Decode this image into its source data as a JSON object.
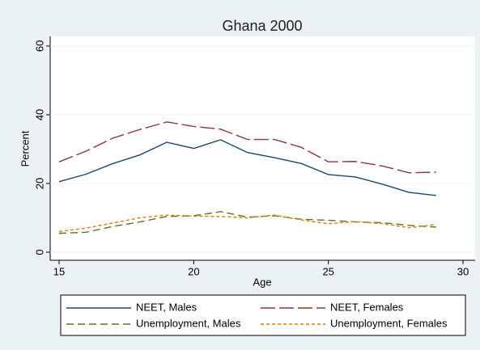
{
  "chart_data": {
    "type": "line",
    "title": "Ghana 2000",
    "x_label": "Age",
    "y_label": "Percent",
    "x": [
      15,
      16,
      17,
      18,
      19,
      20,
      21,
      22,
      23,
      24,
      25,
      26,
      27,
      28,
      29
    ],
    "series": [
      {
        "name": "NEET, Males",
        "color": "#1a476f",
        "values": [
          20.5,
          22.7,
          25.8,
          28.3,
          32,
          30.2,
          32.7,
          29,
          27.5,
          25.8,
          22.6,
          21.9,
          19.8,
          17.4,
          16.5
        ]
      },
      {
        "name": "NEET, Females",
        "color": "#90353b",
        "values": [
          26.3,
          29.4,
          33.2,
          35.7,
          37.9,
          36.6,
          35.8,
          32.8,
          32.8,
          30.5,
          26.3,
          26.4,
          25.1,
          23.1,
          23.3
        ]
      },
      {
        "name": "Unemployment, Males",
        "color": "#55752f",
        "values": [
          5.5,
          5.8,
          7.5,
          8.8,
          10.4,
          10.6,
          11.8,
          10.2,
          10.6,
          9.6,
          9.3,
          8.8,
          8.6,
          7.8,
          7.3
        ]
      },
      {
        "name": "Unemployment, Females",
        "color": "#e37e00",
        "values": [
          6,
          7,
          8.5,
          10,
          10.8,
          10.5,
          10.4,
          10,
          10.8,
          9.4,
          8.3,
          8.9,
          8.3,
          7.1,
          8.1
        ]
      }
    ],
    "xlim": [
      14.67,
      30.45
    ],
    "xticks": [
      15,
      20,
      25,
      30
    ],
    "ylim": [
      -2.35,
      62.8
    ],
    "yticks": [
      0,
      20,
      40,
      60
    ],
    "grid": true,
    "legend_position": "bottom"
  }
}
